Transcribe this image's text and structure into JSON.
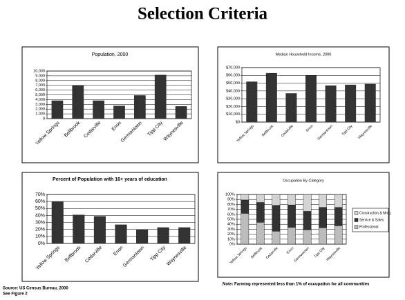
{
  "title": "Selection Criteria",
  "chart_data": [
    {
      "type": "bar",
      "title": "Population, 2000",
      "categories": [
        "Yellow Springs",
        "Bellbrook",
        "Cedarville",
        "Enon",
        "Germantown",
        "Tipp City",
        "Waynesville"
      ],
      "values": [
        3800,
        7000,
        3800,
        2700,
        4900,
        9200,
        2600
      ],
      "color": "#333333",
      "ylim": [
        0,
        10000
      ],
      "yticks": [
        0,
        {
          "value": 1000,
          "label": "1,000"
        },
        {
          "value": 2000,
          "label": "2,000"
        },
        {
          "value": 3000,
          "label": "3,000"
        },
        {
          "value": 4000,
          "label": "4,000"
        },
        {
          "value": 5000,
          "label": "5,000"
        },
        {
          "value": 6000,
          "label": "6,000"
        },
        {
          "value": 7000,
          "label": "7,000"
        },
        {
          "value": 8000,
          "label": "8,000"
        },
        {
          "value": 9000,
          "label": "9,000"
        },
        {
          "value": 10000,
          "label": "10,000"
        }
      ],
      "grid": true
    },
    {
      "type": "bar",
      "title": "Median Household Income, 2000",
      "categories": [
        "Yellow Springs",
        "Bellbrook",
        "Cedarville",
        "Enon",
        "Germantown",
        "Tipp City",
        "Waynesville"
      ],
      "values": [
        52000,
        63000,
        37000,
        60000,
        47000,
        48000,
        49000
      ],
      "color": "#333333",
      "ylim": [
        0,
        70000
      ],
      "yticks": [
        {
          "value": 0,
          "label": "$0"
        },
        {
          "value": 10000,
          "label": "$10,000"
        },
        {
          "value": 20000,
          "label": "$20,000"
        },
        {
          "value": 30000,
          "label": "$30,000"
        },
        {
          "value": 40000,
          "label": "$40,000"
        },
        {
          "value": 50000,
          "label": "$50,000"
        },
        {
          "value": 60000,
          "label": "$60,000"
        },
        {
          "value": 70000,
          "label": "$70,000"
        }
      ],
      "grid": true
    },
    {
      "type": "bar",
      "title": "Percent of Population with 16+ years of education",
      "categories": [
        "Yellow Springs",
        "Bellbrook",
        "Cedarville",
        "Enon",
        "Germantown",
        "Tipp City",
        "Waynesville"
      ],
      "values": [
        60,
        41,
        39,
        27,
        20,
        23,
        23
      ],
      "color": "#333333",
      "ylim": [
        0,
        70
      ],
      "yticks": [
        {
          "value": 0,
          "label": "0%"
        },
        {
          "value": 10,
          "label": "10%"
        },
        {
          "value": 20,
          "label": "20%"
        },
        {
          "value": 30,
          "label": "30%"
        },
        {
          "value": 40,
          "label": "40%"
        },
        {
          "value": 50,
          "label": "50%"
        },
        {
          "value": 60,
          "label": "60%"
        },
        {
          "value": 70,
          "label": "70%"
        }
      ],
      "grid": true
    },
    {
      "type": "stacked_bar",
      "title": "Occupation By Category",
      "categories": [
        "Yellow Springs",
        "Bellbrook",
        "Cedarville",
        "Enon",
        "Germantown",
        "Tipp City",
        "Waynesville"
      ],
      "series": [
        {
          "name": "Construction & Mnfg",
          "color": "#d4d4d4",
          "values": [
            11,
            16,
            22,
            21,
            34,
            26,
            26
          ]
        },
        {
          "name": "Service & Sales",
          "color": "#333333",
          "values": [
            27,
            40,
            52,
            45,
            37,
            41,
            37
          ]
        },
        {
          "name": "Professional",
          "color": "#bcbcbc",
          "values": [
            62,
            44,
            26,
            34,
            29,
            33,
            37
          ]
        }
      ],
      "ylim": [
        0,
        100
      ],
      "yticks": [
        {
          "value": 0,
          "label": "0%"
        },
        {
          "value": 10,
          "label": "10%"
        },
        {
          "value": 20,
          "label": "20%"
        },
        {
          "value": 30,
          "label": "30%"
        },
        {
          "value": 40,
          "label": "40%"
        },
        {
          "value": 50,
          "label": "50%"
        },
        {
          "value": 60,
          "label": "60%"
        },
        {
          "value": 70,
          "label": "70%"
        },
        {
          "value": 80,
          "label": "80%"
        },
        {
          "value": 90,
          "label": "90%"
        },
        {
          "value": 100,
          "label": "100%"
        }
      ],
      "grid": true,
      "legend": "right"
    }
  ],
  "note": "Note: Farming represented less than 1% of occupation for all communities",
  "source": "Source: US Census Bureau, 2000",
  "see": "See Figure 2"
}
